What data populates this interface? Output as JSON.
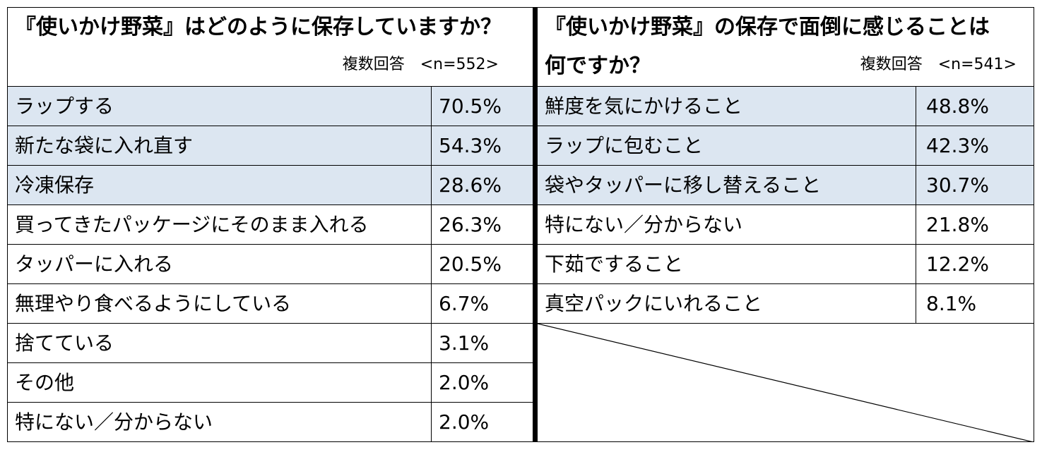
{
  "left": {
    "title": "『使いかけ野菜』はどのように保存していますか？",
    "note": "複数回答　<n=552>",
    "rows": [
      {
        "label": "ラップする",
        "value": "70.5%"
      },
      {
        "label": "新たな袋に入れ直す",
        "value": "54.3%"
      },
      {
        "label": "冷凍保存",
        "value": "28.6%"
      },
      {
        "label": "買ってきたパッケージにそのまま入れる",
        "value": "26.3%"
      },
      {
        "label": "タッパーに入れる",
        "value": "20.5%"
      },
      {
        "label": "無理やり食べるようにしている",
        "value": "6.7%"
      },
      {
        "label": "捨てている",
        "value": "3.1%"
      },
      {
        "label": "その他",
        "value": "2.0%"
      },
      {
        "label": "特にない／分からない",
        "value": "2.0%"
      }
    ]
  },
  "right": {
    "title_line1": "『使いかけ野菜』の保存で面倒に感じることは",
    "title_line2": "何ですか？",
    "note": "複数回答　<n=541>",
    "rows": [
      {
        "label": "鮮度を気にかけること",
        "value": "48.8%"
      },
      {
        "label": "ラップに包むこと",
        "value": "42.3%"
      },
      {
        "label": "袋やタッパーに移し替えること",
        "value": "30.7%"
      },
      {
        "label": "特にない／分からない",
        "value": "21.8%"
      },
      {
        "label": "下茹ですること",
        "value": "12.2%"
      },
      {
        "label": "真空パックにいれること",
        "value": "8.1%"
      }
    ]
  },
  "colors": {
    "highlight": "#dce6f1",
    "border": "#000000"
  }
}
